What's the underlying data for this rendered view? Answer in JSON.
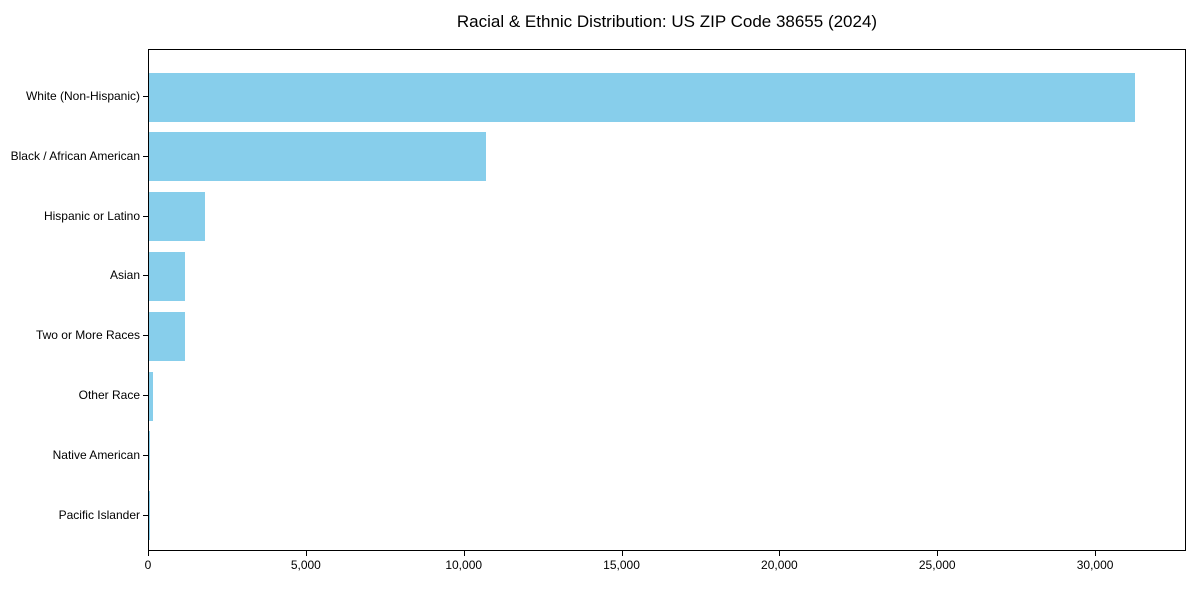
{
  "chart_data": {
    "type": "bar",
    "orientation": "horizontal",
    "title": "Racial & Ethnic Distribution: US ZIP Code 38655 (2024)",
    "categories": [
      "White (Non-Hispanic)",
      "Black / African American",
      "Hispanic or Latino",
      "Asian",
      "Two or More Races",
      "Other Race",
      "Native American",
      "Pacific Islander"
    ],
    "values": [
      31300,
      10680,
      1770,
      1150,
      1140,
      140,
      25,
      10
    ],
    "xlabel": "",
    "ylabel": "",
    "xlim": [
      0,
      32880
    ],
    "xticks": [
      0,
      5000,
      10000,
      15000,
      20000,
      25000,
      30000
    ],
    "xtick_labels": [
      "0",
      "5,000",
      "10,000",
      "15,000",
      "20,000",
      "25,000",
      "30,000"
    ],
    "bar_color": "#87CEEB",
    "background": "#FFFFFF",
    "grid": false,
    "legend": null
  }
}
